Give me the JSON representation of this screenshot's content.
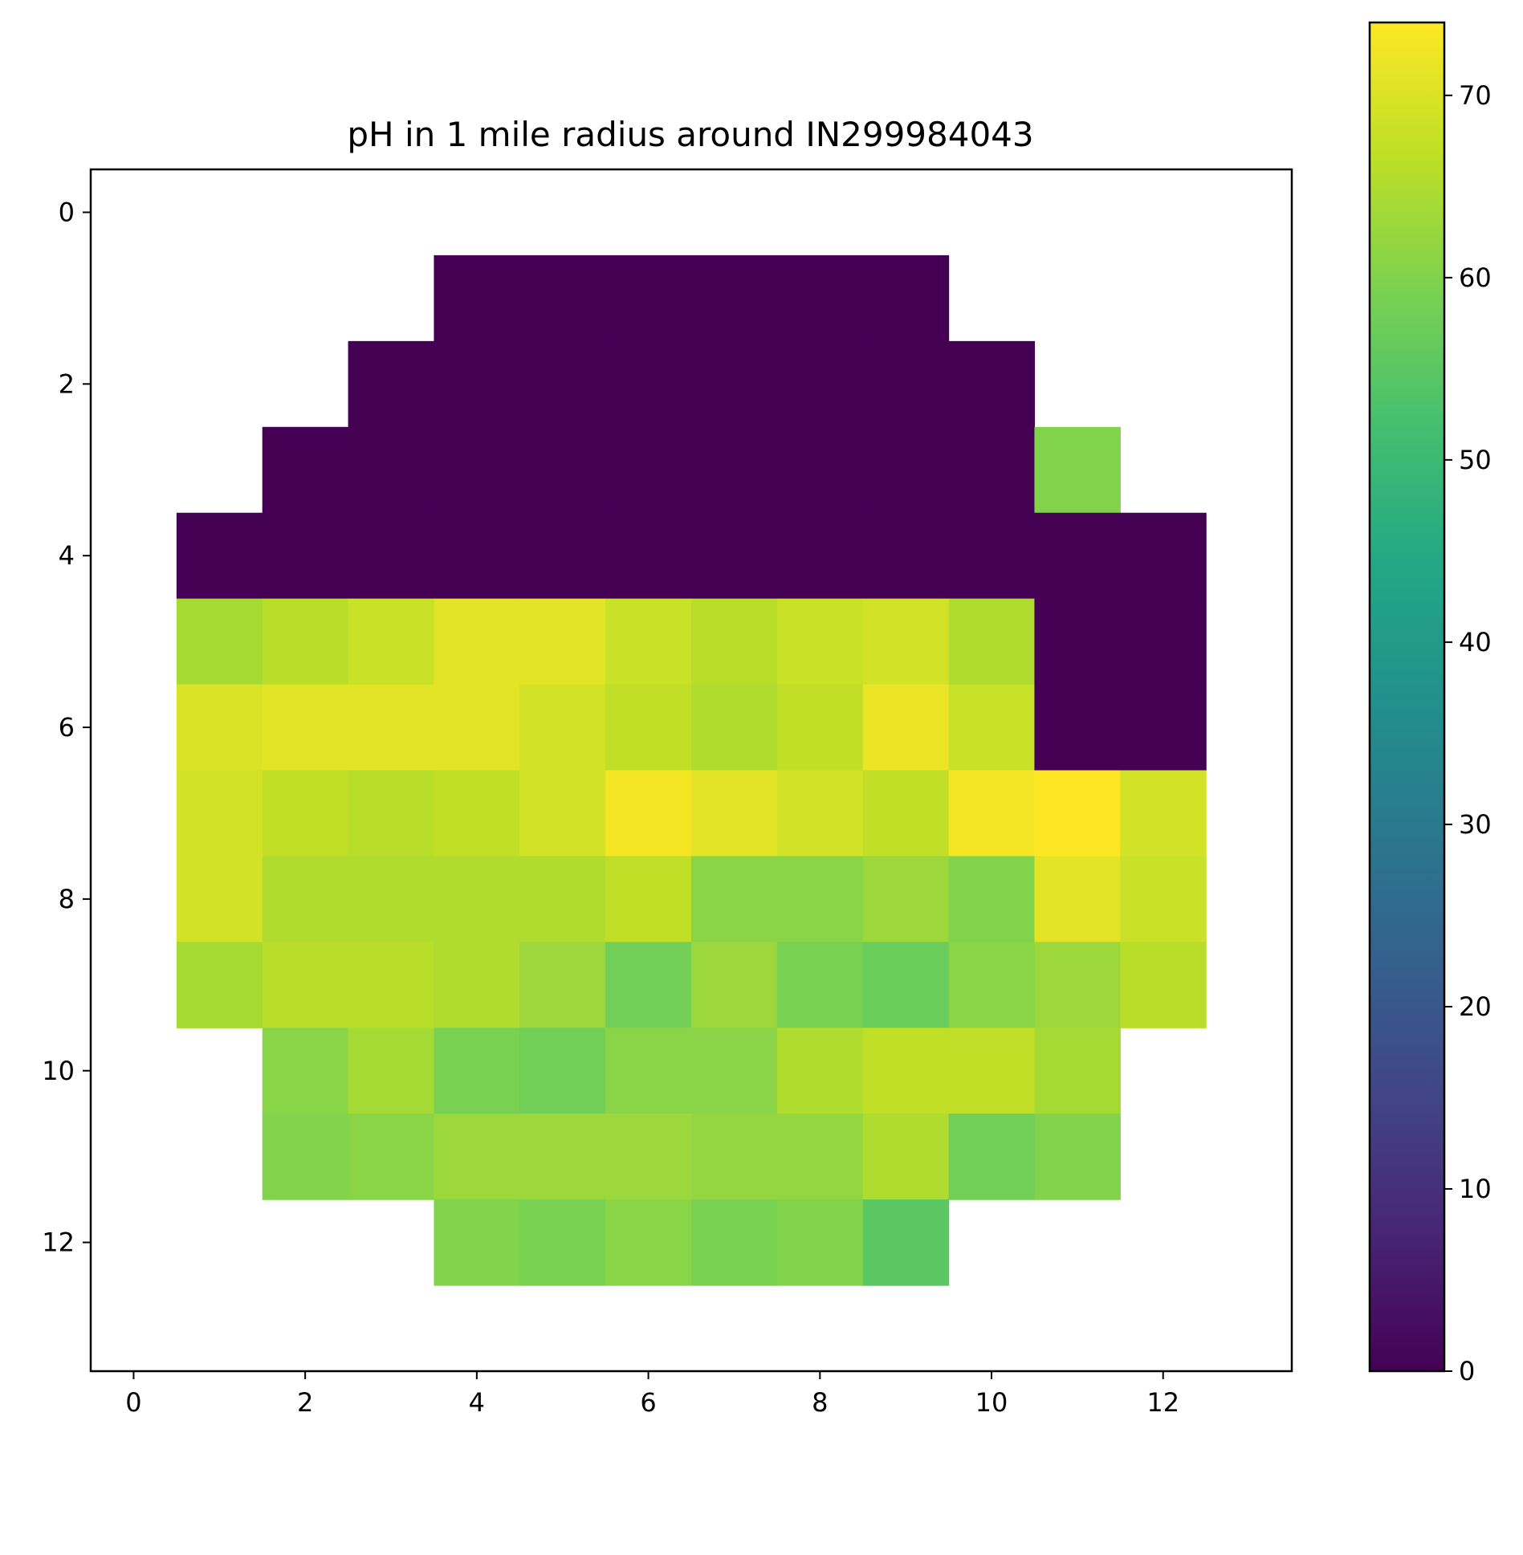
{
  "chart_data": {
    "type": "heatmap",
    "title": "pH in 1 mile radius around IN299984043",
    "xlabel": "",
    "ylabel": "",
    "x_ticks": [
      0,
      2,
      4,
      6,
      8,
      10,
      12
    ],
    "y_ticks": [
      0,
      2,
      4,
      6,
      8,
      10,
      12
    ],
    "xlim": [
      -0.5,
      13.5
    ],
    "ylim": [
      13.5,
      -0.5
    ],
    "colormap": "viridis",
    "colorbar": {
      "min": 0,
      "max": 74,
      "ticks": [
        0,
        10,
        20,
        30,
        40,
        50,
        60,
        70
      ]
    },
    "grid": false,
    "z": [
      [
        null,
        null,
        null,
        null,
        null,
        null,
        null,
        null,
        null,
        null,
        null,
        null,
        null,
        null
      ],
      [
        null,
        null,
        null,
        null,
        0,
        0,
        0,
        0,
        0,
        0,
        null,
        null,
        null,
        null
      ],
      [
        null,
        null,
        null,
        0,
        0,
        0,
        0,
        0,
        0,
        0,
        0,
        null,
        null,
        null
      ],
      [
        null,
        null,
        0,
        0,
        0,
        0,
        0,
        0,
        0,
        0,
        0,
        60,
        null,
        null
      ],
      [
        null,
        0,
        0,
        0,
        0,
        0,
        0,
        0,
        0,
        0,
        0,
        0,
        0,
        null
      ],
      [
        null,
        64,
        66,
        68,
        71,
        71,
        68,
        66,
        68,
        69,
        65,
        0,
        0,
        null
      ],
      [
        null,
        70,
        71,
        71,
        71,
        69,
        67,
        65,
        67,
        72,
        68,
        0,
        0,
        null
      ],
      [
        null,
        69,
        67,
        66,
        67,
        69,
        73,
        71,
        69,
        67,
        73,
        74,
        69,
        null
      ],
      [
        null,
        69,
        65,
        65,
        65,
        65,
        67,
        61,
        61,
        63,
        60,
        71,
        68,
        null
      ],
      [
        null,
        64,
        66,
        66,
        65,
        63,
        58,
        63,
        59,
        57,
        61,
        63,
        66,
        null
      ],
      [
        null,
        null,
        61,
        64,
        59,
        58,
        61,
        61,
        65,
        67,
        67,
        64,
        null,
        null
      ],
      [
        null,
        null,
        60,
        61,
        63,
        63,
        63,
        62,
        62,
        65,
        58,
        60,
        null,
        null
      ],
      [
        null,
        null,
        null,
        null,
        60,
        59,
        61,
        59,
        60,
        55,
        null,
        null,
        null,
        null
      ],
      [
        null,
        null,
        null,
        null,
        null,
        null,
        null,
        null,
        null,
        null,
        null,
        null,
        null,
        null
      ]
    ]
  }
}
